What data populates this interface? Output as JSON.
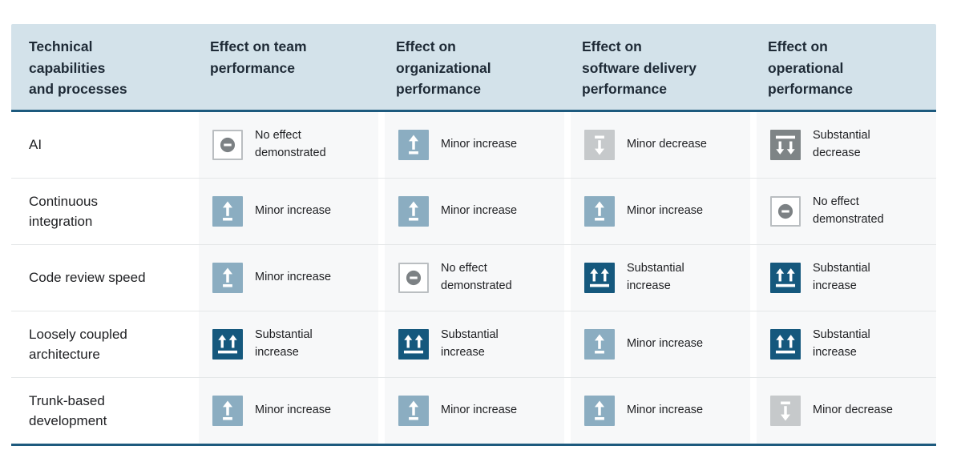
{
  "table": {
    "columns": [
      {
        "label": "Technical\ncapabilities\nand processes"
      },
      {
        "label": "Effect on team\nperformance"
      },
      {
        "label": "Effect on\norganizational\nperformance"
      },
      {
        "label": "Effect on\nsoftware delivery\nperformance"
      },
      {
        "label": "Effect on\noperational\nperformance"
      }
    ],
    "rows": [
      {
        "label": "AI",
        "cells": [
          "no_effect",
          "minor_increase",
          "minor_decrease",
          "substantial_decrease"
        ]
      },
      {
        "label": "Continuous\nintegration",
        "cells": [
          "minor_increase",
          "minor_increase",
          "minor_increase",
          "no_effect"
        ]
      },
      {
        "label": "Code review speed",
        "cells": [
          "minor_increase",
          "no_effect",
          "substantial_increase",
          "substantial_increase"
        ]
      },
      {
        "label": "Loosely coupled\narchitecture",
        "cells": [
          "substantial_increase",
          "substantial_increase",
          "minor_increase",
          "substantial_increase"
        ]
      },
      {
        "label": "Trunk-based\ndevelopment",
        "cells": [
          "minor_increase",
          "minor_increase",
          "minor_increase",
          "minor_decrease"
        ]
      }
    ]
  },
  "effects": {
    "no_effect": {
      "label": "No effect\ndemonstrated",
      "icon": "minus-circle-icon",
      "bg": "#ffffff",
      "border": "#babec1",
      "glyph": "#7c8184"
    },
    "minor_increase": {
      "label": "Minor increase",
      "icon": "single-up-arrow-icon",
      "bg": "#8badc1",
      "glyph": "#ffffff"
    },
    "substantial_increase": {
      "label": "Substantial\nincrease",
      "icon": "double-up-arrow-icon",
      "bg": "#15587d",
      "glyph": "#ffffff"
    },
    "minor_decrease": {
      "label": "Minor decrease",
      "icon": "single-down-arrow-icon",
      "bg": "#c6c9cb",
      "glyph": "#ffffff"
    },
    "substantial_decrease": {
      "label": "Substantial\ndecrease",
      "icon": "double-down-arrow-icon",
      "bg": "#7e8486",
      "glyph": "#ffffff"
    }
  },
  "colors": {
    "header_bg": "#d3e2ea",
    "header_text": "#1e2a36",
    "accent_border": "#1d5a7e",
    "row_divider": "#e4e7e8",
    "cell_bg": "#f7f8f9",
    "body_text": "#202124"
  },
  "chart_data": {
    "type": "table",
    "title": "Technical capabilities and processes — effects on performance",
    "row_header": "Technical capabilities and processes",
    "columns": [
      "Effect on team performance",
      "Effect on organizational performance",
      "Effect on software delivery performance",
      "Effect on operational performance"
    ],
    "rows": [
      {
        "capability": "AI",
        "effects": [
          "No effect demonstrated",
          "Minor increase",
          "Minor decrease",
          "Substantial decrease"
        ]
      },
      {
        "capability": "Continuous integration",
        "effects": [
          "Minor increase",
          "Minor increase",
          "Minor increase",
          "No effect demonstrated"
        ]
      },
      {
        "capability": "Code review speed",
        "effects": [
          "Minor increase",
          "No effect demonstrated",
          "Substantial increase",
          "Substantial increase"
        ]
      },
      {
        "capability": "Loosely coupled architecture",
        "effects": [
          "Substantial increase",
          "Substantial increase",
          "Minor increase",
          "Substantial increase"
        ]
      },
      {
        "capability": "Trunk-based development",
        "effects": [
          "Minor increase",
          "Minor increase",
          "Minor increase",
          "Minor decrease"
        ]
      }
    ],
    "legend_values": [
      "Substantial increase",
      "Minor increase",
      "No effect demonstrated",
      "Minor decrease",
      "Substantial decrease"
    ]
  }
}
